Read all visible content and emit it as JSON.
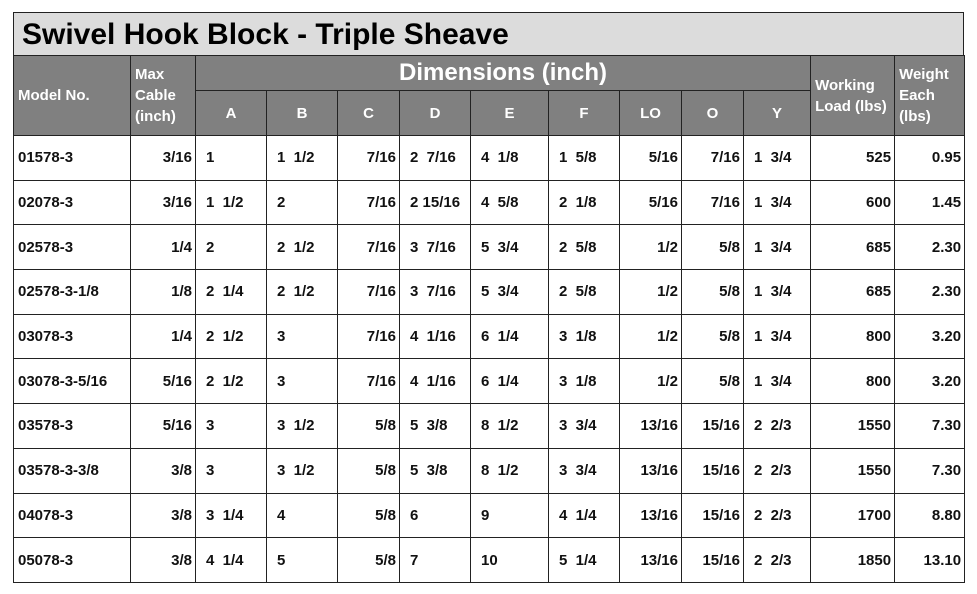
{
  "title": "Swivel Hook Block - Triple Sheave",
  "headers": {
    "model": "Model No.",
    "max_cable": [
      "Max",
      "Cable",
      "(inch)"
    ],
    "dimensions": "Dimensions (inch)",
    "dim_cols": [
      "A",
      "B",
      "C",
      "D",
      "E",
      "F",
      "LO",
      "O",
      "Y"
    ],
    "working_load": [
      "Working",
      "Load (lbs)"
    ],
    "weight": [
      "Weight",
      "Each",
      "(lbs)"
    ]
  },
  "rows": [
    {
      "model": "01578-3",
      "cable": "3/16",
      "A": "1",
      "B": "1  1/2",
      "C": "7/16",
      "D": "2  7/16",
      "E": "4  1/8",
      "F": "1  5/8",
      "LO": "5/16",
      "O": "7/16",
      "Y": "1  3/4",
      "load": "525",
      "weight": "0.95"
    },
    {
      "model": "02078-3",
      "cable": "3/16",
      "A": "1  1/2",
      "B": "2",
      "C": "7/16",
      "D": "2 15/16",
      "E": "4  5/8",
      "F": "2  1/8",
      "LO": "5/16",
      "O": "7/16",
      "Y": "1  3/4",
      "load": "600",
      "weight": "1.45"
    },
    {
      "model": "02578-3",
      "cable": "1/4",
      "A": "2",
      "B": "2  1/2",
      "C": "7/16",
      "D": "3  7/16",
      "E": "5  3/4",
      "F": "2  5/8",
      "LO": "1/2",
      "O": "5/8",
      "Y": "1  3/4",
      "load": "685",
      "weight": "2.30"
    },
    {
      "model": "02578-3-1/8",
      "cable": "1/8",
      "A": "2  1/4",
      "B": "2  1/2",
      "C": "7/16",
      "D": "3  7/16",
      "E": "5  3/4",
      "F": "2  5/8",
      "LO": "1/2",
      "O": "5/8",
      "Y": "1  3/4",
      "load": "685",
      "weight": "2.30"
    },
    {
      "model": "03078-3",
      "cable": "1/4",
      "A": "2  1/2",
      "B": "3",
      "C": "7/16",
      "D": "4  1/16",
      "E": "6  1/4",
      "F": "3  1/8",
      "LO": "1/2",
      "O": "5/8",
      "Y": "1  3/4",
      "load": "800",
      "weight": "3.20"
    },
    {
      "model": "03078-3-5/16",
      "cable": "5/16",
      "A": "2  1/2",
      "B": "3",
      "C": "7/16",
      "D": "4  1/16",
      "E": "6  1/4",
      "F": "3  1/8",
      "LO": "1/2",
      "O": "5/8",
      "Y": "1  3/4",
      "load": "800",
      "weight": "3.20"
    },
    {
      "model": "03578-3",
      "cable": "5/16",
      "A": "3",
      "B": "3  1/2",
      "C": "5/8",
      "D": "5  3/8",
      "E": "8  1/2",
      "F": "3  3/4",
      "LO": "13/16",
      "O": "15/16",
      "Y": "2  2/3",
      "load": "1550",
      "weight": "7.30"
    },
    {
      "model": "03578-3-3/8",
      "cable": "3/8",
      "A": "3",
      "B": "3  1/2",
      "C": "5/8",
      "D": "5  3/8",
      "E": "8  1/2",
      "F": "3  3/4",
      "LO": "13/16",
      "O": "15/16",
      "Y": "2  2/3",
      "load": "1550",
      "weight": "7.30"
    },
    {
      "model": "04078-3",
      "cable": "3/8",
      "A": "3  1/4",
      "B": "4",
      "C": "5/8",
      "D": "6",
      "E": "9",
      "F": "4  1/4",
      "LO": "13/16",
      "O": "15/16",
      "Y": "2  2/3",
      "load": "1700",
      "weight": "8.80"
    },
    {
      "model": "05078-3",
      "cable": "3/8",
      "A": "4  1/4",
      "B": "5",
      "C": "5/8",
      "D": "7",
      "E": "10",
      "F": "5  1/4",
      "LO": "13/16",
      "O": "15/16",
      "Y": "2  2/3",
      "load": "1850",
      "weight": "13.10"
    }
  ]
}
